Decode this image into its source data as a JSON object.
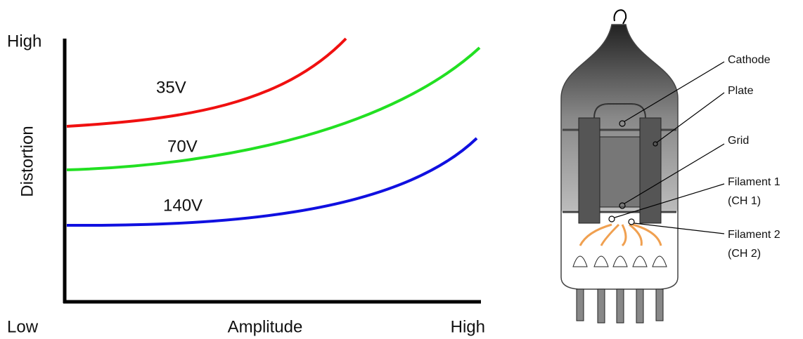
{
  "graph": {
    "y_axis": {
      "high": "High",
      "title": "Distortion"
    },
    "x_axis": {
      "low": "Low",
      "title": "Amplitude",
      "high": "High"
    },
    "curves": [
      {
        "label": "35V"
      },
      {
        "label": "70V"
      },
      {
        "label": "140V"
      }
    ]
  },
  "tube": {
    "labels": [
      "Cathode",
      "Plate",
      "Grid",
      "Filament 1",
      "(CH 1)",
      "Filament 2",
      "(CH 2)"
    ]
  }
}
